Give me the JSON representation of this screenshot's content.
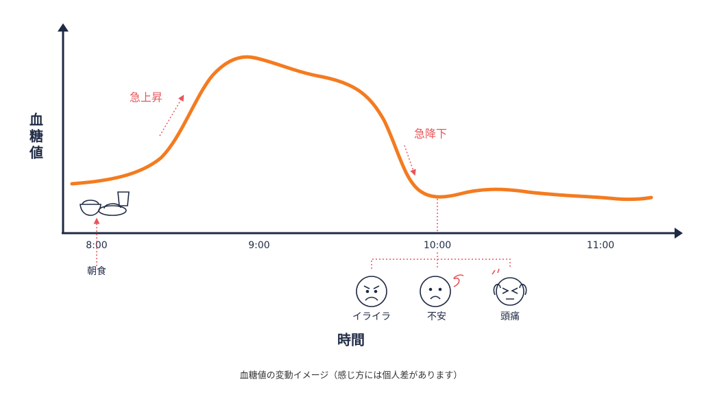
{
  "y_axis_label": "血糖値",
  "x_axis_label": "時間",
  "x_ticks": [
    "8:00",
    "9:00",
    "10:00",
    "11:00"
  ],
  "annotations": {
    "rise": "急上昇",
    "fall": "急降下",
    "breakfast": "朝食"
  },
  "symptoms": [
    "イライラ",
    "不安",
    "頭痛"
  ],
  "caption": "血糖値の変動イメージ（感じ方には個人差があります）"
}
